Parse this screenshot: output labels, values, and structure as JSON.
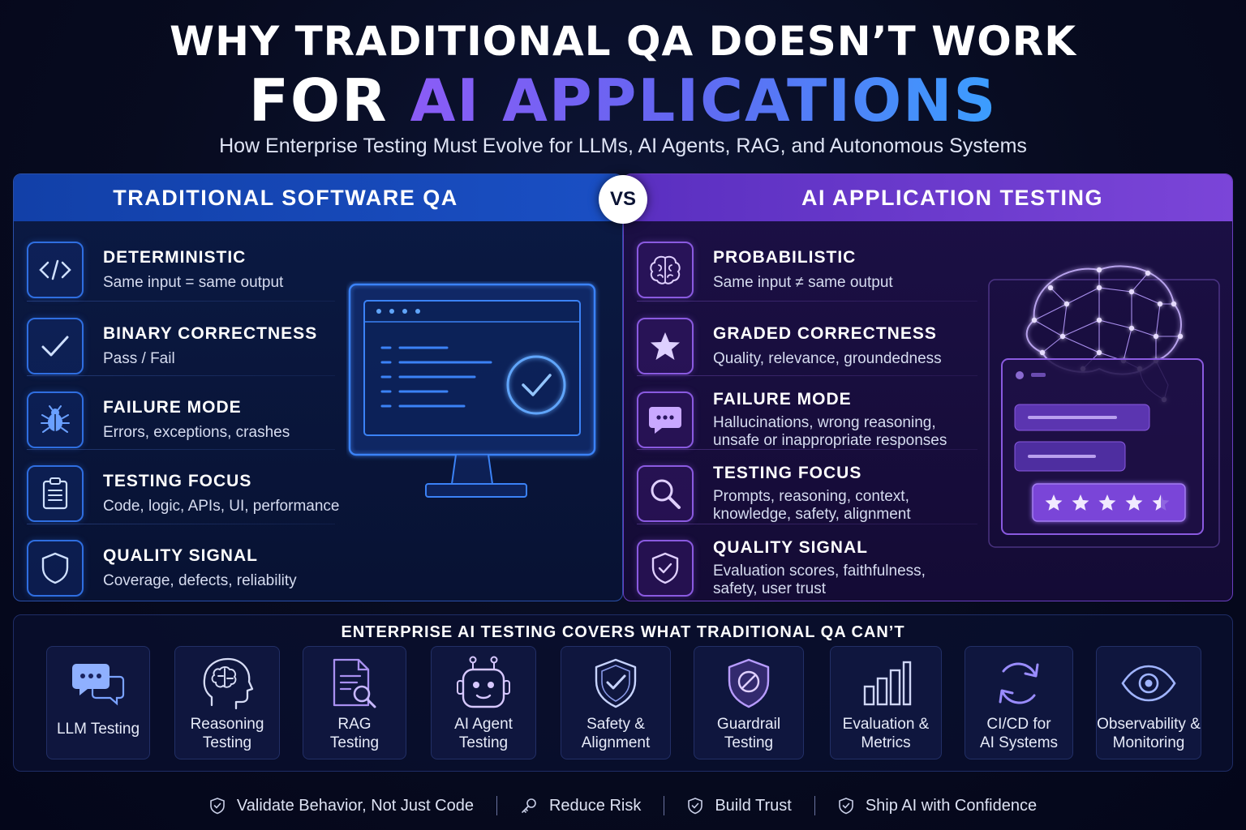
{
  "header": {
    "title_line1": "WHY TRADITIONAL QA DOESN’T WORK",
    "title_line2_prefix": "FOR ",
    "title_line2_accent": "AI APPLICATIONS",
    "subtitle": "How Enterprise Testing Must Evolve for LLMs, AI Agents, RAG, and Autonomous Systems"
  },
  "vs_label": "VS",
  "traditional": {
    "heading": "TRADITIONAL SOFTWARE QA",
    "rows": [
      {
        "title": "DETERMINISTIC",
        "desc": "Same input = same output",
        "icon": "code-icon"
      },
      {
        "title": "BINARY CORRECTNESS",
        "desc": "Pass / Fail",
        "icon": "checkmark-icon"
      },
      {
        "title": "FAILURE MODE",
        "desc": "Errors, exceptions, crashes",
        "icon": "bug-icon"
      },
      {
        "title": "TESTING FOCUS",
        "desc": "Code, logic, APIs, UI, performance",
        "icon": "clipboard-icon"
      },
      {
        "title": "QUALITY SIGNAL",
        "desc": "Coverage, defects, reliability",
        "icon": "shield-icon"
      }
    ]
  },
  "ai": {
    "heading": "AI APPLICATION TESTING",
    "rows": [
      {
        "title": "PROBABILISTIC",
        "desc1": "Same input ≠ same output",
        "desc2": "",
        "icon": "brain-icon"
      },
      {
        "title": "GRADED CORRECTNESS",
        "desc1": "Quality, relevance, groundedness",
        "desc2": "",
        "icon": "star-icon"
      },
      {
        "title": "FAILURE MODE",
        "desc1": "Hallucinations, wrong reasoning,",
        "desc2": "unsafe or inappropriate responses",
        "icon": "chat-bubble-icon"
      },
      {
        "title": "TESTING FOCUS",
        "desc1": "Prompts, reasoning, context,",
        "desc2": "knowledge, safety, alignment",
        "icon": "magnifier-icon"
      },
      {
        "title": "QUALITY SIGNAL",
        "desc1": "Evaluation scores, faithfulness,",
        "desc2": "safety, user trust",
        "icon": "shield-check-icon"
      }
    ],
    "rating_stars": 4.5
  },
  "coverage": {
    "title": "ENTERPRISE AI TESTING COVERS WHAT TRADITIONAL QA CAN’T",
    "tiles": [
      {
        "line1": "LLM Testing",
        "line2": "",
        "icon": "chat-bubbles-icon"
      },
      {
        "line1": "Reasoning",
        "line2": "Testing",
        "icon": "head-brain-icon"
      },
      {
        "line1": "RAG",
        "line2": "Testing",
        "icon": "document-search-icon"
      },
      {
        "line1": "AI Agent",
        "line2": "Testing",
        "icon": "robot-icon"
      },
      {
        "line1": "Safety &",
        "line2": "Alignment",
        "icon": "shield-check-icon"
      },
      {
        "line1": "Guardrail",
        "line2": "Testing",
        "icon": "guardrail-shield-icon"
      },
      {
        "line1": "Evaluation &",
        "line2": "Metrics",
        "icon": "bar-chart-icon"
      },
      {
        "line1": "CI/CD for",
        "line2": "AI Systems",
        "icon": "refresh-cycle-icon"
      },
      {
        "line1": "Observability &",
        "line2": "Monitoring",
        "icon": "eye-icon"
      }
    ]
  },
  "footer": {
    "items": [
      {
        "label": "Validate Behavior, Not Just Code",
        "icon": "shield-check-icon"
      },
      {
        "label": "Reduce Risk",
        "icon": "key-icon"
      },
      {
        "label": "Build Trust",
        "icon": "shield-check-icon"
      },
      {
        "label": "Ship AI with Confidence",
        "icon": "shield-check-icon"
      }
    ]
  },
  "colors": {
    "blue_accent": "#2f6ee0",
    "purple_accent": "#8a5ae0",
    "background": "#070b1f"
  }
}
